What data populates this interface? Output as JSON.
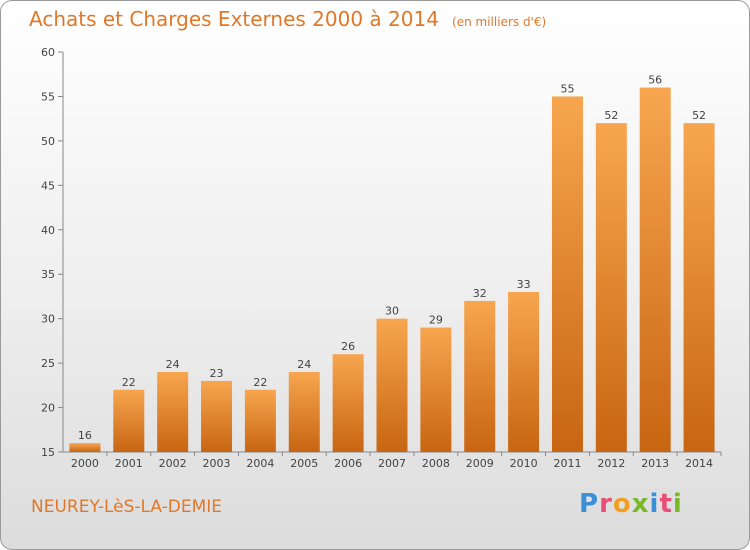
{
  "title": {
    "main": "Achats et Charges Externes 2000 à 2014",
    "unit": "(en milliers d'€)"
  },
  "commune": "NEUREY-LèS-LA-DEMIE",
  "logo": {
    "text": "Proxiti",
    "colors": [
      "#3a8fd8",
      "#e94e77",
      "#f0a020",
      "#7ab828",
      "#3a8fd8",
      "#e94e77",
      "#7ab828"
    ]
  },
  "colors": {
    "bar_light": "#f7a64f",
    "bar_dark": "#c86512",
    "text_accent": "#e0782a"
  },
  "chart_data": {
    "type": "bar",
    "categories": [
      "2000",
      "2001",
      "2002",
      "2003",
      "2004",
      "2005",
      "2006",
      "2007",
      "2008",
      "2009",
      "2010",
      "2011",
      "2012",
      "2013",
      "2014"
    ],
    "values": [
      16,
      22,
      24,
      23,
      22,
      24,
      26,
      30,
      29,
      32,
      33,
      55,
      52,
      56,
      52
    ],
    "ylim": [
      15,
      60
    ],
    "yticks": [
      15,
      20,
      25,
      30,
      35,
      40,
      45,
      50,
      55,
      60
    ],
    "grid": false,
    "xlabel": "",
    "ylabel": ""
  }
}
